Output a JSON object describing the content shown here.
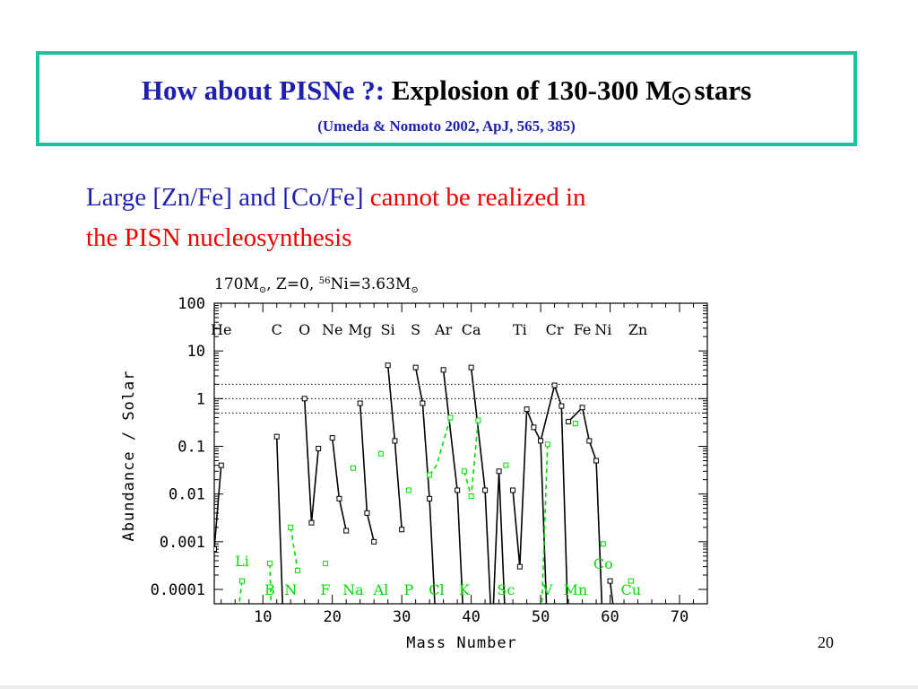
{
  "slide": {
    "title_blue": "How about PISNe ?:",
    "title_black": "Explosion of 130-300 M",
    "title_after_symbol": "stars",
    "sun_symbol_icon": "sun-symbol",
    "citation": "(Umeda & Nomoto 2002, ApJ, 565, 385)",
    "statement_blue": "Large [Zn/Fe] and [Co/Fe]",
    "statement_red_1": "cannot be realized in",
    "statement_red_2": "the PISN nucleosynthesis",
    "page_number": "20"
  },
  "colors": {
    "title_border": "#19c39b",
    "title_blue": "#1f1fb0",
    "statement_red": "#ee0000",
    "series_black": "#000000",
    "series_green": "#00dd00"
  },
  "chart_data": {
    "type": "line",
    "header_parts": [
      "170M",
      "⊙",
      ", Z=0, ",
      "56",
      "Ni=3.63M",
      "⊙"
    ],
    "xlabel": "Mass Number",
    "ylabel": "Abundance / Solar",
    "xlim": [
      3,
      74
    ],
    "ylim": [
      5e-05,
      100
    ],
    "yscale": "log",
    "xticks": [
      10,
      20,
      30,
      40,
      50,
      60,
      70
    ],
    "yticks": [
      {
        "value": 100,
        "label": "100"
      },
      {
        "value": 10,
        "label": "10"
      },
      {
        "value": 1,
        "label": "1"
      },
      {
        "value": 0.1,
        "label": "0.1"
      },
      {
        "value": 0.01,
        "label": "0.01"
      },
      {
        "value": 0.001,
        "label": "0.001"
      },
      {
        "value": 0.0001,
        "label": "0.0001"
      }
    ],
    "reference_lines": [
      2,
      1,
      0.5
    ],
    "element_labels_top": [
      {
        "text": "He",
        "x": 4
      },
      {
        "text": "C",
        "x": 12
      },
      {
        "text": "O",
        "x": 16
      },
      {
        "text": "Ne",
        "x": 20
      },
      {
        "text": "Mg",
        "x": 24
      },
      {
        "text": "Si",
        "x": 28
      },
      {
        "text": "S",
        "x": 32
      },
      {
        "text": "Ar",
        "x": 36
      },
      {
        "text": "Ca",
        "x": 40
      },
      {
        "text": "Ti",
        "x": 47
      },
      {
        "text": "Cr",
        "x": 52
      },
      {
        "text": "Fe",
        "x": 56
      },
      {
        "text": "Ni",
        "x": 59
      },
      {
        "text": "Zn",
        "x": 64
      }
    ],
    "element_labels_bottom": [
      {
        "text": "Li",
        "x": 7,
        "y": 0.0004
      },
      {
        "text": "Co",
        "x": 59,
        "y": 0.00035
      },
      {
        "text": "B",
        "x": 11,
        "y": 0.0001
      },
      {
        "text": "N",
        "x": 14,
        "y": 0.0001
      },
      {
        "text": "F",
        "x": 19,
        "y": 0.0001
      },
      {
        "text": "Na",
        "x": 23,
        "y": 0.0001
      },
      {
        "text": "Al",
        "x": 27,
        "y": 0.0001
      },
      {
        "text": "P",
        "x": 31,
        "y": 0.0001
      },
      {
        "text": "Cl",
        "x": 35,
        "y": 0.0001
      },
      {
        "text": "K",
        "x": 39,
        "y": 0.0001
      },
      {
        "text": "Sc",
        "x": 45,
        "y": 0.0001
      },
      {
        "text": "V",
        "x": 51,
        "y": 0.0001
      },
      {
        "text": "Mn",
        "x": 55,
        "y": 0.0001
      },
      {
        "text": "Cu",
        "x": 63,
        "y": 0.0001
      }
    ],
    "series": [
      {
        "color": "black",
        "dashed": false,
        "points": [
          [
            3,
            0.0007
          ],
          [
            4,
            0.04
          ]
        ]
      },
      {
        "color": "black",
        "dashed": false,
        "points": [
          [
            12,
            0.16
          ],
          [
            13,
            1e-05
          ]
        ]
      },
      {
        "color": "black",
        "dashed": false,
        "points": [
          [
            16,
            1.0
          ],
          [
            17,
            0.0025
          ],
          [
            18,
            0.09
          ]
        ]
      },
      {
        "color": "black",
        "dashed": false,
        "points": [
          [
            20,
            0.15
          ],
          [
            21,
            0.008
          ],
          [
            22,
            0.0017
          ]
        ]
      },
      {
        "color": "black",
        "dashed": false,
        "points": [
          [
            24,
            0.8
          ],
          [
            25,
            0.004
          ],
          [
            26,
            0.001
          ]
        ]
      },
      {
        "color": "black",
        "dashed": false,
        "points": [
          [
            28,
            5.0
          ],
          [
            29,
            0.13
          ],
          [
            30,
            0.0018
          ]
        ]
      },
      {
        "color": "black",
        "dashed": false,
        "points": [
          [
            32,
            4.5
          ],
          [
            33,
            0.8
          ],
          [
            34,
            0.008
          ],
          [
            35,
            1e-05
          ]
        ]
      },
      {
        "color": "black",
        "dashed": false,
        "points": [
          [
            36,
            4.0
          ],
          [
            38,
            0.012
          ],
          [
            39,
            1e-05
          ]
        ]
      },
      {
        "color": "black",
        "dashed": false,
        "points": [
          [
            40,
            4.5
          ],
          [
            42,
            0.012
          ],
          [
            43,
            1e-05
          ]
        ]
      },
      {
        "color": "black",
        "dashed": false,
        "points": [
          [
            43,
            1e-05
          ],
          [
            44,
            0.03
          ],
          [
            45,
            1e-05
          ]
        ]
      },
      {
        "color": "black",
        "dashed": false,
        "points": [
          [
            46,
            0.012
          ],
          [
            47,
            0.0003
          ],
          [
            48,
            0.6
          ],
          [
            49,
            0.25
          ],
          [
            50,
            0.13
          ],
          [
            51,
            1e-05
          ]
        ]
      },
      {
        "color": "black",
        "dashed": false,
        "points": [
          [
            50,
            0.13
          ],
          [
            52,
            1.9
          ],
          [
            53,
            0.7
          ],
          [
            54,
            1e-05
          ]
        ]
      },
      {
        "color": "black",
        "dashed": false,
        "points": [
          [
            54,
            0.33
          ],
          [
            56,
            0.65
          ],
          [
            57,
            0.13
          ],
          [
            58,
            0.05
          ],
          [
            59,
            1e-05
          ]
        ]
      },
      {
        "color": "black",
        "dashed": false,
        "points": [
          [
            60,
            0.00015
          ],
          [
            61,
            1e-05
          ]
        ]
      },
      {
        "color": "green",
        "dashed": true,
        "points": [
          [
            7,
            0.00015
          ],
          [
            6,
            1e-05
          ]
        ]
      },
      {
        "color": "green",
        "dashed": true,
        "points": [
          [
            11,
            0.00035
          ],
          [
            11.3,
            1e-05
          ]
        ]
      },
      {
        "color": "green",
        "dashed": true,
        "points": [
          [
            14,
            0.002
          ],
          [
            15,
            0.00025
          ]
        ]
      },
      {
        "color": "green",
        "dashed": true,
        "points": [
          [
            34,
            0.025
          ],
          [
            35,
            0.04
          ],
          [
            37,
            0.4
          ]
        ]
      },
      {
        "color": "green",
        "dashed": true,
        "points": [
          [
            39,
            0.03
          ],
          [
            40,
            0.009
          ],
          [
            41,
            0.35
          ]
        ]
      },
      {
        "color": "green",
        "dashed": true,
        "points": [
          [
            51,
            0.11
          ],
          [
            50,
            1e-05
          ]
        ]
      }
    ],
    "markers": [
      {
        "color": "green",
        "points": [
          [
            7,
            0.00015
          ],
          [
            11,
            0.00035
          ],
          [
            14,
            0.002
          ],
          [
            15,
            0.00025
          ],
          [
            19,
            0.00035
          ],
          [
            23,
            0.035
          ],
          [
            27,
            0.07
          ],
          [
            31,
            0.012
          ],
          [
            34,
            0.025
          ],
          [
            37,
            0.4
          ],
          [
            39,
            0.03
          ],
          [
            40,
            0.009
          ],
          [
            41,
            0.35
          ],
          [
            45,
            0.04
          ],
          [
            51,
            0.11
          ],
          [
            55,
            0.3
          ],
          [
            59,
            0.0009
          ],
          [
            63,
            0.00015
          ]
        ]
      },
      {
        "color": "black",
        "points": [
          [
            3,
            0.0007
          ],
          [
            4,
            0.04
          ],
          [
            12,
            0.16
          ],
          [
            16,
            1.0
          ],
          [
            17,
            0.0025
          ],
          [
            18,
            0.09
          ],
          [
            20,
            0.15
          ],
          [
            21,
            0.008
          ],
          [
            22,
            0.0017
          ],
          [
            24,
            0.8
          ],
          [
            25,
            0.004
          ],
          [
            26,
            0.001
          ],
          [
            28,
            5.0
          ],
          [
            29,
            0.13
          ],
          [
            30,
            0.0018
          ],
          [
            32,
            4.5
          ],
          [
            33,
            0.8
          ],
          [
            34,
            0.008
          ],
          [
            36,
            4.0
          ],
          [
            38,
            0.012
          ],
          [
            40,
            4.5
          ],
          [
            42,
            0.012
          ],
          [
            44,
            0.03
          ],
          [
            46,
            0.012
          ],
          [
            47,
            0.0003
          ],
          [
            48,
            0.6
          ],
          [
            49,
            0.25
          ],
          [
            50,
            0.13
          ],
          [
            52,
            1.9
          ],
          [
            53,
            0.7
          ],
          [
            54,
            0.33
          ],
          [
            56,
            0.65
          ],
          [
            57,
            0.13
          ],
          [
            58,
            0.05
          ],
          [
            60,
            0.00015
          ]
        ]
      }
    ]
  }
}
